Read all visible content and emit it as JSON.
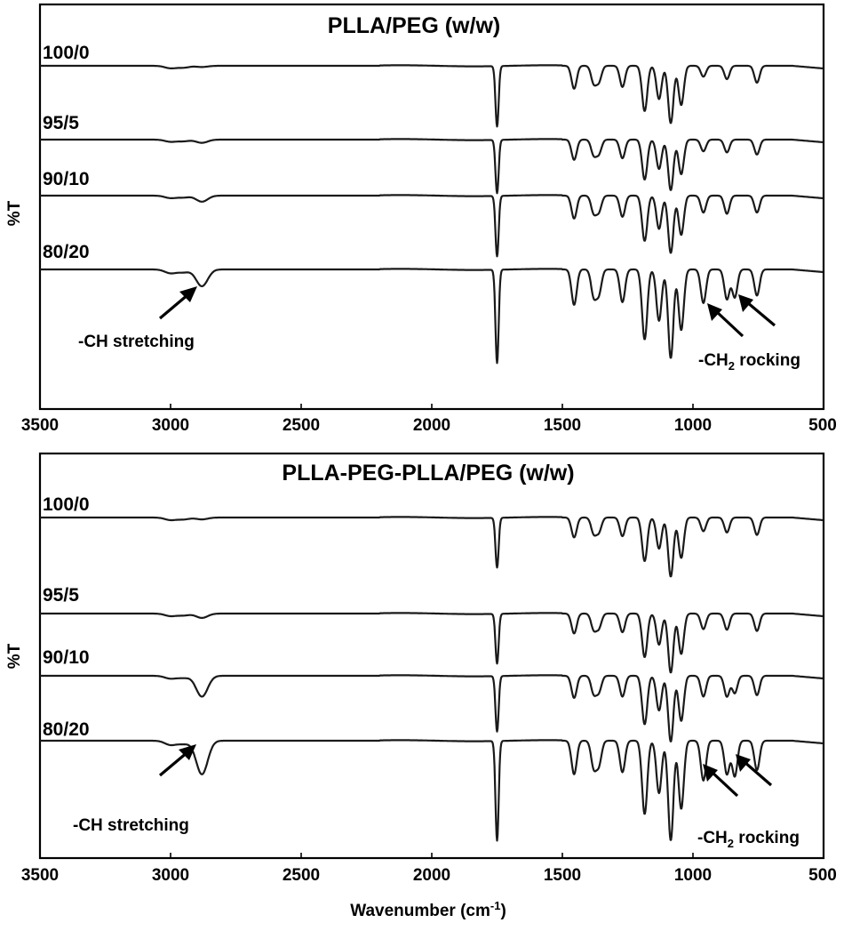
{
  "chart_data": [
    {
      "type": "line",
      "title": "PLLA/PEG (w/w)",
      "xlabel": "",
      "ylabel": "%T",
      "xlim": [
        3500,
        500
      ],
      "x_reversed": true,
      "xticks": [
        3500,
        3000,
        2500,
        2000,
        1500,
        1000,
        500
      ],
      "grid": false,
      "series": [
        {
          "name": "100/0",
          "offset": 0,
          "peaks": [
            [
              3000,
              0.04
            ],
            [
              2950,
              0.03
            ],
            [
              2880,
              0.02
            ],
            [
              1750,
              1.0
            ],
            [
              1455,
              0.38
            ],
            [
              1380,
              0.28
            ],
            [
              1360,
              0.25
            ],
            [
              1270,
              0.35
            ],
            [
              1185,
              0.75
            ],
            [
              1130,
              0.55
            ],
            [
              1085,
              0.95
            ],
            [
              1045,
              0.65
            ],
            [
              960,
              0.18
            ],
            [
              870,
              0.22
            ],
            [
              755,
              0.28
            ]
          ]
        },
        {
          "name": "95/5",
          "offset": 1,
          "peaks": [
            [
              3000,
              0.04
            ],
            [
              2950,
              0.03
            ],
            [
              2880,
              0.06
            ],
            [
              1750,
              1.0
            ],
            [
              1455,
              0.38
            ],
            [
              1380,
              0.28
            ],
            [
              1360,
              0.25
            ],
            [
              1270,
              0.35
            ],
            [
              1185,
              0.75
            ],
            [
              1130,
              0.55
            ],
            [
              1085,
              0.95
            ],
            [
              1045,
              0.65
            ],
            [
              960,
              0.22
            ],
            [
              870,
              0.24
            ],
            [
              755,
              0.28
            ]
          ]
        },
        {
          "name": "90/10",
          "offset": 2,
          "peaks": [
            [
              3000,
              0.04
            ],
            [
              2950,
              0.03
            ],
            [
              2880,
              0.1
            ],
            [
              1750,
              1.0
            ],
            [
              1455,
              0.38
            ],
            [
              1380,
              0.28
            ],
            [
              1360,
              0.25
            ],
            [
              1270,
              0.35
            ],
            [
              1185,
              0.75
            ],
            [
              1130,
              0.55
            ],
            [
              1085,
              0.95
            ],
            [
              1045,
              0.65
            ],
            [
              960,
              0.28
            ],
            [
              870,
              0.3
            ],
            [
              755,
              0.28
            ]
          ]
        },
        {
          "name": "80/20",
          "offset": 3,
          "peaks": [
            [
              3000,
              0.04
            ],
            [
              2950,
              0.03
            ],
            [
              2880,
              0.18
            ],
            [
              1750,
              1.0
            ],
            [
              1455,
              0.38
            ],
            [
              1380,
              0.28
            ],
            [
              1360,
              0.25
            ],
            [
              1270,
              0.35
            ],
            [
              1185,
              0.75
            ],
            [
              1130,
              0.55
            ],
            [
              1085,
              0.95
            ],
            [
              1045,
              0.65
            ],
            [
              960,
              0.36
            ],
            [
              870,
              0.32
            ],
            [
              840,
              0.3
            ],
            [
              755,
              0.28
            ]
          ]
        }
      ],
      "annotations": [
        {
          "text": "-CH stretching",
          "at_x": 2880
        },
        {
          "text_main": "-CH",
          "text_sub": "2",
          "text_rest": " rocking",
          "at_x": [
            960,
            840
          ]
        }
      ]
    },
    {
      "type": "line",
      "title": "PLLA-PEG-PLLA/PEG (w/w)",
      "xlabel": "Wavenumber (cm",
      "xlabel_sup": "-1",
      "xlabel_end": ")",
      "ylabel": "%T",
      "xlim": [
        3500,
        500
      ],
      "x_reversed": true,
      "xticks": [
        3500,
        3000,
        2500,
        2000,
        1500,
        1000,
        500
      ],
      "grid": false,
      "series": [
        {
          "name": "100/0",
          "offset": 0,
          "peaks": [
            [
              3000,
              0.04
            ],
            [
              2950,
              0.03
            ],
            [
              2880,
              0.03
            ],
            [
              1750,
              0.8
            ],
            [
              1455,
              0.32
            ],
            [
              1380,
              0.25
            ],
            [
              1360,
              0.22
            ],
            [
              1270,
              0.3
            ],
            [
              1185,
              0.7
            ],
            [
              1130,
              0.5
            ],
            [
              1085,
              0.95
            ],
            [
              1045,
              0.65
            ],
            [
              960,
              0.22
            ],
            [
              870,
              0.24
            ],
            [
              755,
              0.28
            ]
          ]
        },
        {
          "name": "95/5",
          "offset": 1,
          "peaks": [
            [
              3000,
              0.04
            ],
            [
              2950,
              0.03
            ],
            [
              2880,
              0.07
            ],
            [
              1750,
              0.8
            ],
            [
              1455,
              0.32
            ],
            [
              1380,
              0.25
            ],
            [
              1360,
              0.22
            ],
            [
              1270,
              0.3
            ],
            [
              1185,
              0.7
            ],
            [
              1130,
              0.5
            ],
            [
              1085,
              0.95
            ],
            [
              1045,
              0.65
            ],
            [
              960,
              0.25
            ],
            [
              870,
              0.26
            ],
            [
              755,
              0.28
            ]
          ]
        },
        {
          "name": "90/10",
          "offset": 2,
          "peaks": [
            [
              3000,
              0.04
            ],
            [
              2950,
              0.03
            ],
            [
              2880,
              0.3
            ],
            [
              1750,
              0.8
            ],
            [
              1455,
              0.32
            ],
            [
              1380,
              0.25
            ],
            [
              1360,
              0.22
            ],
            [
              1270,
              0.3
            ],
            [
              1185,
              0.7
            ],
            [
              1130,
              0.5
            ],
            [
              1085,
              0.95
            ],
            [
              1045,
              0.65
            ],
            [
              960,
              0.3
            ],
            [
              870,
              0.3
            ],
            [
              840,
              0.25
            ],
            [
              755,
              0.28
            ]
          ]
        },
        {
          "name": "80/20",
          "offset": 3,
          "peaks": [
            [
              3000,
              0.04
            ],
            [
              2950,
              0.03
            ],
            [
              2880,
              0.32
            ],
            [
              1750,
              0.95
            ],
            [
              1455,
              0.32
            ],
            [
              1380,
              0.25
            ],
            [
              1360,
              0.22
            ],
            [
              1270,
              0.3
            ],
            [
              1185,
              0.7
            ],
            [
              1130,
              0.5
            ],
            [
              1085,
              0.95
            ],
            [
              1045,
              0.65
            ],
            [
              960,
              0.38
            ],
            [
              870,
              0.32
            ],
            [
              840,
              0.34
            ],
            [
              755,
              0.28
            ]
          ]
        }
      ],
      "annotations": [
        {
          "text": "-CH stretching",
          "at_x": 2880
        },
        {
          "text_main": "-CH",
          "text_sub": "2",
          "text_rest": " rocking",
          "at_x": [
            960,
            840
          ]
        }
      ]
    }
  ]
}
